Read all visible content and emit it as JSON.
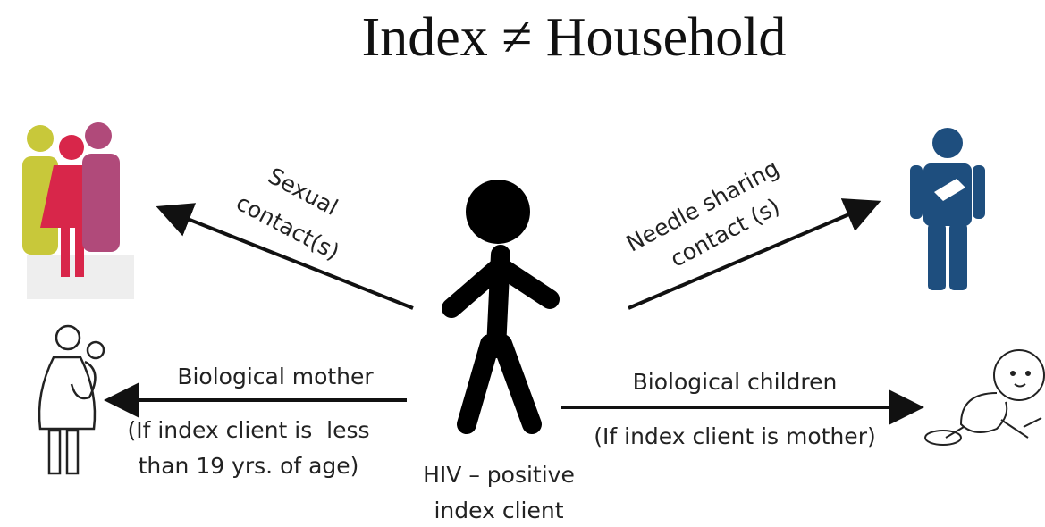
{
  "title": "Index ≠ Household",
  "center": {
    "label": [
      "HIV – positive",
      "index client"
    ]
  },
  "edges": [
    {
      "label": [
        "Sexual",
        "contact(s)"
      ]
    },
    {
      "label": [
        "Needle sharing",
        "contact (s)"
      ]
    },
    {
      "label": [
        "Biological mother"
      ],
      "note": [
        "(If index client is  less",
        "than 19 yrs. of age)"
      ]
    },
    {
      "label": [
        "Biological children"
      ],
      "note": [
        "(If index client is mother)"
      ]
    }
  ]
}
